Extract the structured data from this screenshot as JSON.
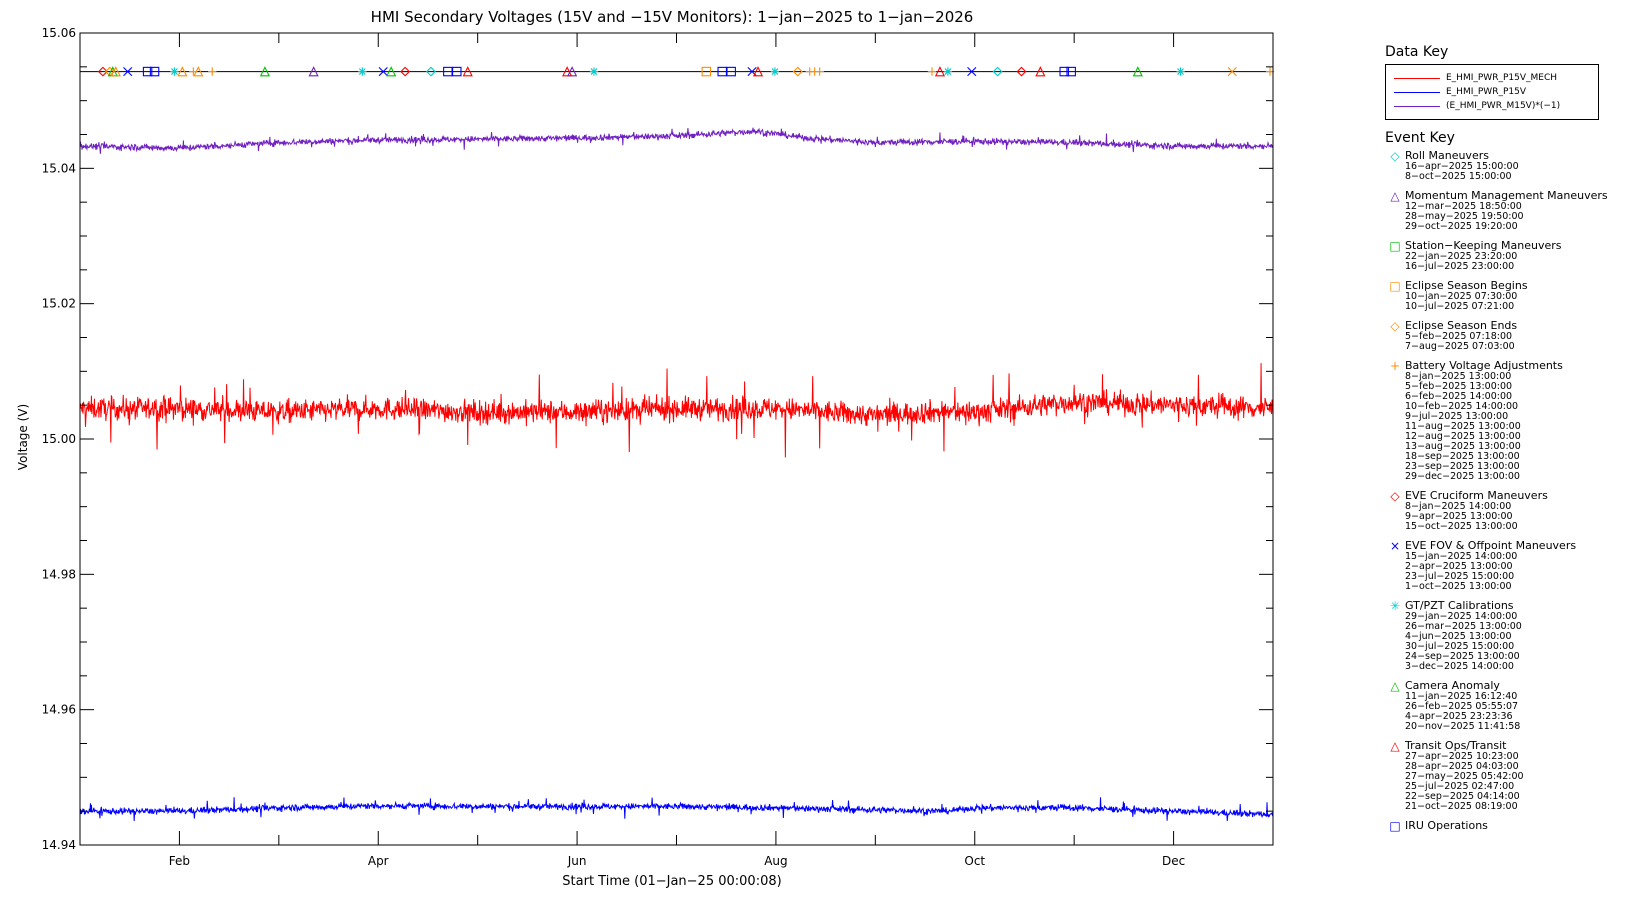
{
  "chart_data": {
    "type": "line",
    "title": "HMI Secondary Voltages (15V and −15V Monitors): 1−jan−2025 to 1−jan−2026",
    "xlabel": "Start Time (01−Jan−25 00:00:08)",
    "ylabel": "Voltage (V)",
    "xlim": [
      0,
      12
    ],
    "ylim": [
      14.94,
      15.06
    ],
    "x_ticks": [
      {
        "value": 1,
        "label": "Feb"
      },
      {
        "value": 3,
        "label": "Apr"
      },
      {
        "value": 5,
        "label": "Jun"
      },
      {
        "value": 7,
        "label": "Aug"
      },
      {
        "value": 9,
        "label": "Oct"
      },
      {
        "value": 11,
        "label": "Dec"
      }
    ],
    "y_ticks": [
      {
        "value": 14.94,
        "label": "14.94"
      },
      {
        "value": 14.96,
        "label": "14.96"
      },
      {
        "value": 14.98,
        "label": "14.98"
      },
      {
        "value": 15.0,
        "label": "15.00"
      },
      {
        "value": 15.02,
        "label": "15.02"
      },
      {
        "value": 15.04,
        "label": "15.04"
      },
      {
        "value": 15.06,
        "label": "15.06"
      }
    ],
    "event_line_y": 15.0543,
    "series": [
      {
        "name": "E_HMI_PWR_P15V_MECH",
        "color": "#ff0000",
        "noise": 0.0018,
        "spike": 0.006,
        "x": [
          0,
          1,
          2,
          3,
          4,
          5,
          6,
          7,
          8,
          8.5,
          9,
          10,
          11,
          12
        ],
        "y": [
          15.0045,
          15.0045,
          15.004,
          15.0045,
          15.004,
          15.004,
          15.0045,
          15.0045,
          15.0035,
          15.004,
          15.004,
          15.0055,
          15.005,
          15.0045
        ]
      },
      {
        "name": "E_HMI_PWR_P15V",
        "color": "#0000ff",
        "noise": 0.0005,
        "spike": 0.0015,
        "x": [
          0,
          1,
          2,
          3,
          4,
          5,
          6,
          7,
          8,
          8.7,
          9,
          10,
          11,
          12
        ],
        "y": [
          14.945,
          14.945,
          14.9455,
          14.9458,
          14.9457,
          14.9457,
          14.9457,
          14.9455,
          14.9452,
          14.945,
          14.9455,
          14.9455,
          14.945,
          14.9445
        ]
      },
      {
        "name": "(E_HMI_PWR_M15V)*(−1)",
        "color": "#7020c0",
        "noise": 0.0005,
        "spike": 0.0012,
        "x": [
          0,
          1,
          2,
          3,
          4,
          5,
          6,
          6.8,
          7.3,
          8,
          9,
          10,
          11,
          12
        ],
        "y": [
          15.0433,
          15.043,
          15.0438,
          15.0442,
          15.0443,
          15.0445,
          15.0448,
          15.0455,
          15.0445,
          15.0438,
          15.044,
          15.0438,
          15.0433,
          15.0433
        ]
      }
    ],
    "event_markers": [
      {
        "x": 0.23,
        "sym": "diamond",
        "color": "#ff0000"
      },
      {
        "x": 0.3,
        "sym": "diamond",
        "color": "#ff8c00"
      },
      {
        "x": 0.33,
        "sym": "triangle",
        "color": "#00c000"
      },
      {
        "x": 0.36,
        "sym": "triangle",
        "color": "#ff8c00"
      },
      {
        "x": 0.48,
        "sym": "x",
        "color": "#0000ff"
      },
      {
        "x": 0.68,
        "sym": "square",
        "color": "#0000ff"
      },
      {
        "x": 0.75,
        "sym": "square",
        "color": "#0000ff"
      },
      {
        "x": 0.95,
        "sym": "star",
        "color": "#00cccc"
      },
      {
        "x": 1.03,
        "sym": "triangle",
        "color": "#ff8c00"
      },
      {
        "x": 1.14,
        "sym": "plus",
        "color": "#ff8c00"
      },
      {
        "x": 1.19,
        "sym": "triangle",
        "color": "#ff8c00"
      },
      {
        "x": 1.33,
        "sym": "plus",
        "color": "#ff8c00"
      },
      {
        "x": 1.86,
        "sym": "triangle",
        "color": "#00c000"
      },
      {
        "x": 2.35,
        "sym": "triangle",
        "color": "#7020c0"
      },
      {
        "x": 2.84,
        "sym": "star",
        "color": "#00cccc"
      },
      {
        "x": 3.05,
        "sym": "x",
        "color": "#0000ff"
      },
      {
        "x": 3.13,
        "sym": "triangle",
        "color": "#00c000"
      },
      {
        "x": 3.27,
        "sym": "diamond",
        "color": "#ff0000"
      },
      {
        "x": 3.53,
        "sym": "diamond",
        "color": "#00cccc"
      },
      {
        "x": 3.7,
        "sym": "square",
        "color": "#0000ff"
      },
      {
        "x": 3.79,
        "sym": "square",
        "color": "#0000ff"
      },
      {
        "x": 3.9,
        "sym": "triangle",
        "color": "#ff0000"
      },
      {
        "x": 4.9,
        "sym": "triangle",
        "color": "#ff0000"
      },
      {
        "x": 4.95,
        "sym": "triangle",
        "color": "#7020c0"
      },
      {
        "x": 5.17,
        "sym": "star",
        "color": "#00cccc"
      },
      {
        "x": 6.3,
        "sym": "square",
        "color": "#ff8c00"
      },
      {
        "x": 6.46,
        "sym": "square",
        "color": "#0000ff"
      },
      {
        "x": 6.55,
        "sym": "square",
        "color": "#0000ff"
      },
      {
        "x": 6.76,
        "sym": "x",
        "color": "#0000ff"
      },
      {
        "x": 6.82,
        "sym": "triangle",
        "color": "#ff0000"
      },
      {
        "x": 6.99,
        "sym": "star",
        "color": "#00cccc"
      },
      {
        "x": 7.22,
        "sym": "diamond",
        "color": "#ff8c00"
      },
      {
        "x": 7.34,
        "sym": "plus",
        "color": "#ff8c00"
      },
      {
        "x": 7.39,
        "sym": "plus",
        "color": "#ff8c00"
      },
      {
        "x": 7.44,
        "sym": "plus",
        "color": "#ff8c00"
      },
      {
        "x": 8.57,
        "sym": "plus",
        "color": "#ff8c00"
      },
      {
        "x": 8.65,
        "sym": "triangle",
        "color": "#ff0000"
      },
      {
        "x": 8.73,
        "sym": "star",
        "color": "#00cccc"
      },
      {
        "x": 8.97,
        "sym": "x",
        "color": "#0000ff"
      },
      {
        "x": 9.23,
        "sym": "diamond",
        "color": "#00cccc"
      },
      {
        "x": 9.47,
        "sym": "diamond",
        "color": "#ff0000"
      },
      {
        "x": 9.66,
        "sym": "triangle",
        "color": "#ff0000"
      },
      {
        "x": 9.9,
        "sym": "square",
        "color": "#0000ff"
      },
      {
        "x": 9.97,
        "sym": "square",
        "color": "#0000ff"
      },
      {
        "x": 10.64,
        "sym": "triangle",
        "color": "#00c000"
      },
      {
        "x": 11.07,
        "sym": "star",
        "color": "#00cccc"
      },
      {
        "x": 11.59,
        "sym": "x",
        "color": "#ff8c00"
      },
      {
        "x": 11.97,
        "sym": "plus",
        "color": "#ff8c00"
      }
    ]
  },
  "data_key": {
    "title": "Data Key",
    "entries": [
      {
        "label": "E_HMI_PWR_P15V_MECH",
        "color": "#ff0000"
      },
      {
        "label": "E_HMI_PWR_P15V",
        "color": "#0000ff"
      },
      {
        "label": "(E_HMI_PWR_M15V)*(−1)",
        "color": "#7020c0"
      }
    ]
  },
  "event_key": {
    "title": "Event Key",
    "groups": [
      {
        "symbol": "◇",
        "color": "#00cccc",
        "name": "Roll Maneuvers",
        "dates": [
          "16−apr−2025 15:00:00",
          "8−oct−2025 15:00:00"
        ]
      },
      {
        "symbol": "△",
        "color": "#7020c0",
        "name": "Momentum Management Maneuvers",
        "dates": [
          "12−mar−2025 18:50:00",
          "28−may−2025 19:50:00",
          "29−oct−2025 19:20:00"
        ]
      },
      {
        "symbol": "□",
        "color": "#00c000",
        "name": "Station−Keeping Maneuvers",
        "dates": [
          "22−jan−2025 23:20:00",
          "16−jul−2025 23:00:00"
        ]
      },
      {
        "symbol": "□",
        "color": "#ff8c00",
        "name": "Eclipse Season Begins",
        "dates": [
          "10−jan−2025 07:30:00",
          "10−jul−2025 07:21:00"
        ]
      },
      {
        "symbol": "◇",
        "color": "#ff8c00",
        "name": "Eclipse Season Ends",
        "dates": [
          "5−feb−2025 07:18:00",
          "7−aug−2025 07:03:00"
        ]
      },
      {
        "symbol": "+",
        "color": "#ff8c00",
        "name": "Battery Voltage Adjustments",
        "dates": [
          "8−jan−2025 13:00:00",
          "5−feb−2025 13:00:00",
          "6−feb−2025 14:00:00",
          "10−feb−2025 14:00:00",
          "9−jul−2025 13:00:00",
          "11−aug−2025 13:00:00",
          "12−aug−2025 13:00:00",
          "13−aug−2025 13:00:00",
          "18−sep−2025 13:00:00",
          "23−sep−2025 13:00:00",
          "29−dec−2025 13:00:00"
        ]
      },
      {
        "symbol": "◇",
        "color": "#ff0000",
        "name": "EVE Cruciform Maneuvers",
        "dates": [
          "8−jan−2025 14:00:00",
          "9−apr−2025 13:00:00",
          "15−oct−2025 13:00:00"
        ]
      },
      {
        "symbol": "×",
        "color": "#0000ff",
        "name": "EVE FOV & Offpoint Maneuvers",
        "dates": [
          "15−jan−2025 14:00:00",
          "2−apr−2025 13:00:00",
          "23−jul−2025 15:00:00",
          "1−oct−2025 13:00:00"
        ]
      },
      {
        "symbol": "✳",
        "color": "#00cccc",
        "name": "GT/PZT Calibrations",
        "dates": [
          "29−jan−2025 14:00:00",
          "26−mar−2025 13:00:00",
          "4−jun−2025 13:00:00",
          "30−jul−2025 15:00:00",
          "24−sep−2025 13:00:00",
          "3−dec−2025 14:00:00"
        ]
      },
      {
        "symbol": "△",
        "color": "#00c000",
        "name": "Camera Anomaly",
        "dates": [
          "11−jan−2025 16:12:40",
          "26−feb−2025 05:55:07",
          "4−apr−2025 23:23:36",
          "20−nov−2025 11:41:58"
        ]
      },
      {
        "symbol": "△",
        "color": "#ff0000",
        "name": "Transit Ops/Transit",
        "dates": [
          "27−apr−2025 10:23:00",
          "28−apr−2025 04:03:00",
          "27−may−2025 05:42:00",
          "25−jul−2025 02:47:00",
          "22−sep−2025 04:14:00",
          "21−oct−2025 08:19:00"
        ]
      },
      {
        "symbol": "□",
        "color": "#0000ff",
        "name": "IRU Operations",
        "dates": []
      }
    ]
  }
}
